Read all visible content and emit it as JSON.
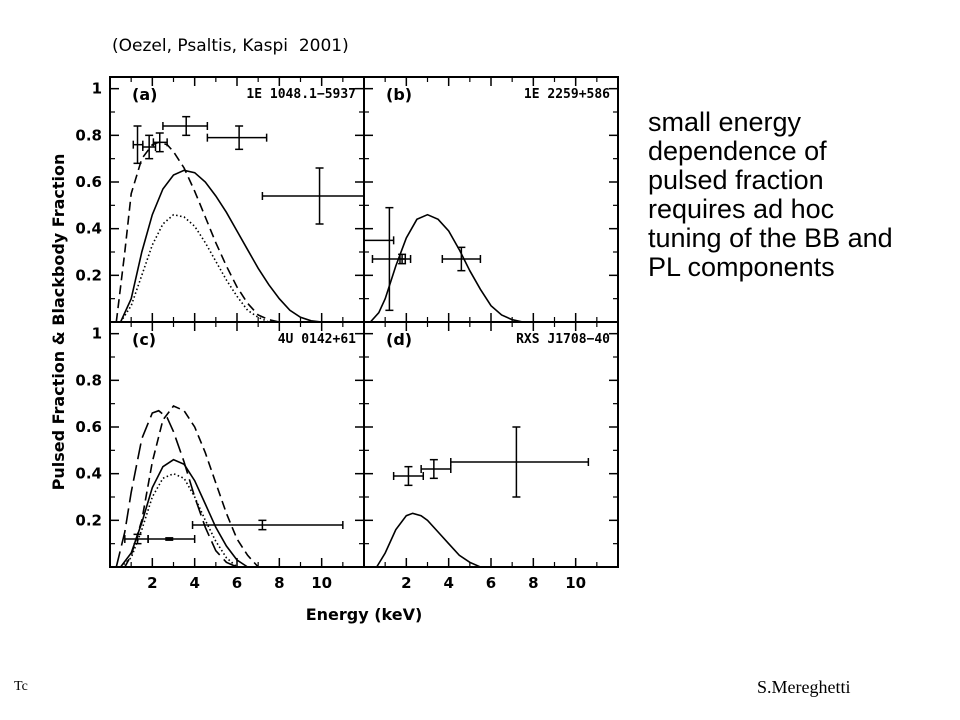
{
  "citation": "(Oezel, Psaltis, Kaspi  2001)",
  "description_lines": [
    "small energy",
    "dependence of",
    "pulsed fraction",
    "requires ad hoc",
    "tuning of the BB and",
    "PL components"
  ],
  "footer": {
    "left": "Tc",
    "right": "S.Mereghetti"
  },
  "chart_data": {
    "type": "line",
    "xlabel": "Energy (keV)",
    "ylabel": "Pulsed Fraction & Blackbody Fraction",
    "xlim": [
      0,
      12
    ],
    "ylim": [
      0,
      1.05
    ],
    "x_ticks": [
      2,
      4,
      6,
      8,
      10
    ],
    "y_ticks": [
      0.2,
      0.4,
      0.6,
      0.8,
      1
    ],
    "y_tick_labels": [
      "0.2",
      "0.4",
      "0.6",
      "0.8",
      "1"
    ],
    "grid": false,
    "panels": [
      {
        "label": "(a)",
        "source": "1E 1048.1−5937",
        "position": "top-left",
        "curves": [
          {
            "style": "solid",
            "points": [
              [
                0.5,
                0
              ],
              [
                1,
                0.1
              ],
              [
                1.5,
                0.3
              ],
              [
                2,
                0.46
              ],
              [
                2.5,
                0.57
              ],
              [
                3,
                0.63
              ],
              [
                3.5,
                0.65
              ],
              [
                4,
                0.64
              ],
              [
                4.5,
                0.6
              ],
              [
                5,
                0.54
              ],
              [
                5.5,
                0.47
              ],
              [
                6,
                0.39
              ],
              [
                6.5,
                0.31
              ],
              [
                7,
                0.23
              ],
              [
                7.5,
                0.16
              ],
              [
                8,
                0.1
              ],
              [
                8.5,
                0.05
              ],
              [
                9,
                0.02
              ],
              [
                9.5,
                0.005
              ],
              [
                10,
                0
              ]
            ]
          },
          {
            "style": "dashed",
            "points": [
              [
                0.3,
                0
              ],
              [
                0.7,
                0.3
              ],
              [
                1,
                0.55
              ],
              [
                1.5,
                0.7
              ],
              [
                2,
                0.76
              ],
              [
                2.3,
                0.77
              ],
              [
                2.7,
                0.76
              ],
              [
                3,
                0.73
              ],
              [
                3.5,
                0.66
              ],
              [
                4,
                0.56
              ],
              [
                4.5,
                0.45
              ],
              [
                5,
                0.34
              ],
              [
                5.5,
                0.24
              ],
              [
                6,
                0.15
              ],
              [
                6.5,
                0.08
              ],
              [
                7,
                0.03
              ],
              [
                7.5,
                0.01
              ],
              [
                8,
                0
              ]
            ]
          },
          {
            "style": "dotted",
            "points": [
              [
                0.5,
                0
              ],
              [
                1,
                0.07
              ],
              [
                1.5,
                0.2
              ],
              [
                2,
                0.33
              ],
              [
                2.5,
                0.42
              ],
              [
                3,
                0.46
              ],
              [
                3.5,
                0.45
              ],
              [
                4,
                0.41
              ],
              [
                4.5,
                0.34
              ],
              [
                5,
                0.26
              ],
              [
                5.5,
                0.18
              ],
              [
                6,
                0.11
              ],
              [
                6.5,
                0.05
              ],
              [
                7,
                0.02
              ],
              [
                7.5,
                0
              ]
            ]
          }
        ],
        "data_points": [
          {
            "x": 1.3,
            "y": 0.76,
            "xerr": [
              0.2,
              0.25
            ],
            "yerr": 0.08
          },
          {
            "x": 1.85,
            "y": 0.75,
            "xerr": [
              0.3,
              0.3
            ],
            "yerr": 0.05
          },
          {
            "x": 2.35,
            "y": 0.77,
            "xerr": [
              0.3,
              0.35
            ],
            "yerr": 0.04
          },
          {
            "x": 3.6,
            "y": 0.84,
            "xerr": [
              1.1,
              1.0
            ],
            "yerr": 0.04
          },
          {
            "x": 6.1,
            "y": 0.79,
            "xerr": [
              1.5,
              1.3
            ],
            "yerr": 0.05
          },
          {
            "x": 9.9,
            "y": 0.54,
            "xerr": [
              2.7,
              2.5
            ],
            "yerr": 0.12
          }
        ]
      },
      {
        "label": "(b)",
        "source": "1E 2259+586",
        "position": "top-right",
        "curves": [
          {
            "style": "solid",
            "points": [
              [
                0.3,
                0
              ],
              [
                0.7,
                0.04
              ],
              [
                1,
                0.1
              ],
              [
                1.5,
                0.24
              ],
              [
                2,
                0.36
              ],
              [
                2.5,
                0.44
              ],
              [
                3,
                0.46
              ],
              [
                3.5,
                0.44
              ],
              [
                4,
                0.39
              ],
              [
                4.5,
                0.31
              ],
              [
                5,
                0.22
              ],
              [
                5.5,
                0.14
              ],
              [
                6,
                0.07
              ],
              [
                6.5,
                0.03
              ],
              [
                7,
                0.01
              ],
              [
                7.5,
                0
              ]
            ]
          }
        ],
        "data_points": [
          {
            "x": 0.4,
            "y": 0.35,
            "xerr": [
              0.5,
              1.0
            ],
            "yerr": 0.0
          },
          {
            "x": 1.2,
            "y": 0.27,
            "xerr": [
              0.8,
              1.0
            ],
            "yerr": 0.22
          },
          {
            "x": 1.8,
            "y": 0.27,
            "xerr": [
              0.1,
              0.15
            ],
            "yerr": 0.02
          },
          {
            "x": 4.6,
            "y": 0.27,
            "xerr": [
              0.9,
              0.9
            ],
            "yerr": 0.05
          }
        ]
      },
      {
        "label": "(c)",
        "source": "4U 0142+61",
        "position": "bottom-left",
        "curves": [
          {
            "style": "solid",
            "points": [
              [
                0.5,
                0
              ],
              [
                1,
                0.06
              ],
              [
                1.5,
                0.19
              ],
              [
                2,
                0.34
              ],
              [
                2.5,
                0.43
              ],
              [
                3,
                0.46
              ],
              [
                3.5,
                0.44
              ],
              [
                4,
                0.37
              ],
              [
                4.5,
                0.27
              ],
              [
                5,
                0.17
              ],
              [
                5.5,
                0.09
              ],
              [
                6,
                0.03
              ],
              [
                6.5,
                0
              ]
            ]
          },
          {
            "style": "dashed",
            "points": [
              [
                0.7,
                0
              ],
              [
                1,
                0.05
              ],
              [
                1.5,
                0.2
              ],
              [
                2,
                0.45
              ],
              [
                2.5,
                0.63
              ],
              [
                3,
                0.69
              ],
              [
                3.5,
                0.67
              ],
              [
                4,
                0.6
              ],
              [
                4.5,
                0.49
              ],
              [
                5,
                0.36
              ],
              [
                5.5,
                0.23
              ],
              [
                6,
                0.12
              ],
              [
                6.5,
                0.05
              ],
              [
                7,
                0
              ]
            ]
          },
          {
            "style": "long-dashed",
            "points": [
              [
                0.3,
                0
              ],
              [
                0.7,
                0.15
              ],
              [
                1,
                0.32
              ],
              [
                1.5,
                0.55
              ],
              [
                2,
                0.66
              ],
              [
                2.3,
                0.67
              ],
              [
                2.7,
                0.64
              ],
              [
                3,
                0.58
              ],
              [
                3.5,
                0.45
              ],
              [
                4,
                0.3
              ],
              [
                4.5,
                0.17
              ],
              [
                5,
                0.07
              ],
              [
                5.5,
                0.02
              ],
              [
                6,
                0
              ]
            ]
          },
          {
            "style": "dotted",
            "points": [
              [
                0.5,
                0
              ],
              [
                1,
                0.04
              ],
              [
                1.5,
                0.16
              ],
              [
                2,
                0.3
              ],
              [
                2.5,
                0.38
              ],
              [
                3,
                0.4
              ],
              [
                3.5,
                0.38
              ],
              [
                4,
                0.3
              ],
              [
                4.5,
                0.2
              ],
              [
                5,
                0.11
              ],
              [
                5.5,
                0.04
              ],
              [
                6,
                0
              ]
            ]
          }
        ],
        "data_points": [
          {
            "x": 1.3,
            "y": 0.12,
            "xerr": [
              0.6,
              0.5
            ],
            "yerr": 0.02
          },
          {
            "x": 2.8,
            "y": 0.12,
            "xerr": [
              1.0,
              1.2
            ],
            "yerr": 0.005
          },
          {
            "x": 7.2,
            "y": 0.18,
            "xerr": [
              3.3,
              3.8
            ],
            "yerr": 0.02
          }
        ]
      },
      {
        "label": "(d)",
        "source": "RXS J1708−40",
        "position": "bottom-right",
        "curves": [
          {
            "style": "solid",
            "points": [
              [
                0.6,
                0
              ],
              [
                1,
                0.06
              ],
              [
                1.5,
                0.16
              ],
              [
                2,
                0.22
              ],
              [
                2.3,
                0.23
              ],
              [
                2.7,
                0.22
              ],
              [
                3,
                0.2
              ],
              [
                3.5,
                0.15
              ],
              [
                4,
                0.1
              ],
              [
                4.5,
                0.05
              ],
              [
                5,
                0.02
              ],
              [
                5.5,
                0
              ]
            ]
          }
        ],
        "data_points": [
          {
            "x": 2.1,
            "y": 0.39,
            "xerr": [
              0.7,
              0.7
            ],
            "yerr": 0.04
          },
          {
            "x": 3.3,
            "y": 0.42,
            "xerr": [
              0.6,
              0.8
            ],
            "yerr": 0.04
          },
          {
            "x": 7.2,
            "y": 0.45,
            "xerr": [
              3.1,
              3.4
            ],
            "yerr": 0.15
          }
        ]
      }
    ]
  },
  "colors": {
    "ink": "#000000",
    "background": "#ffffff"
  }
}
